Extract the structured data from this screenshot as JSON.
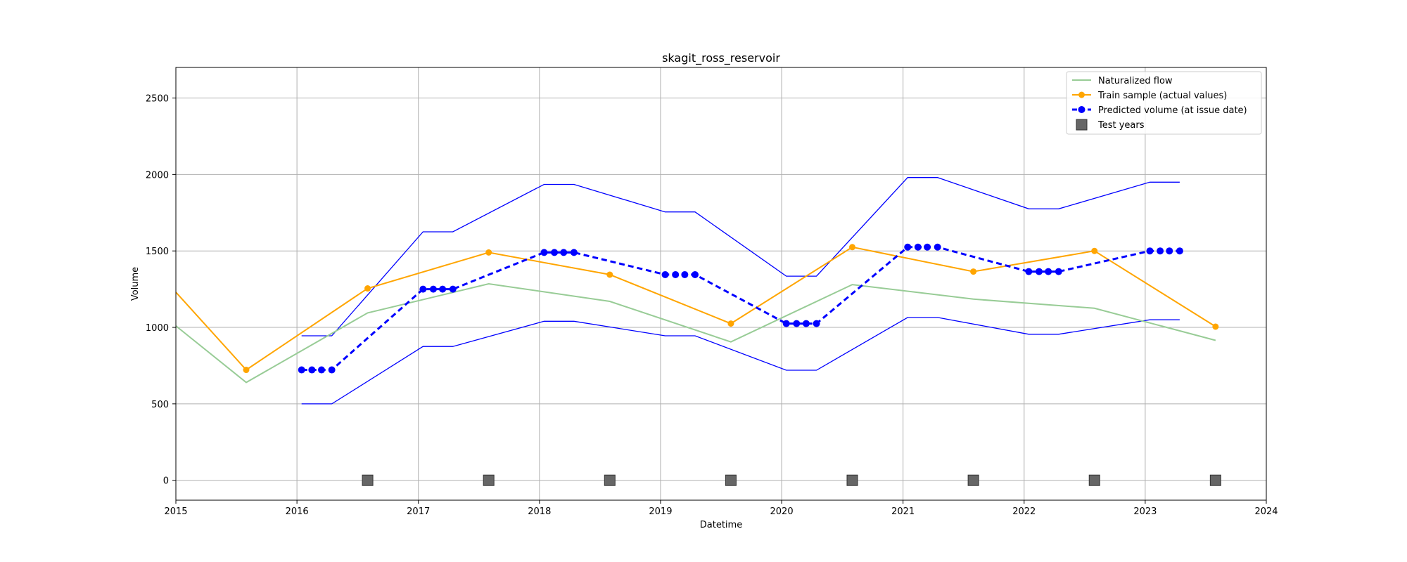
{
  "chart_data": {
    "type": "line",
    "title": "skagit_ross_reservoir",
    "xlabel": "Datetime",
    "ylabel": "Volume",
    "xlim": [
      "2015-01-01",
      "2024-01-01"
    ],
    "ylim": [
      -130,
      2700
    ],
    "xticks": [
      "2015",
      "2016",
      "2017",
      "2018",
      "2019",
      "2020",
      "2021",
      "2022",
      "2023",
      "2024"
    ],
    "yticks": [
      0,
      500,
      1000,
      1500,
      2000,
      2500
    ],
    "grid": true,
    "legend_position": "upper right",
    "colors": {
      "naturalized": "#98cc96",
      "train": "#ffa500",
      "predicted": "#0000ff",
      "bounds": "#0000ff",
      "test": "#666666"
    },
    "naturalized_flow": {
      "name": "Naturalized flow",
      "points": [
        [
          "2015-01-01",
          1010
        ],
        [
          "2015-08-01",
          640
        ],
        [
          "2016-08-01",
          1095
        ],
        [
          "2017-08-01",
          1285
        ],
        [
          "2018-08-01",
          1170
        ],
        [
          "2019-08-01",
          905
        ],
        [
          "2020-08-01",
          1280
        ],
        [
          "2021-08-01",
          1185
        ],
        [
          "2022-08-01",
          1125
        ],
        [
          "2023-08-01",
          915
        ]
      ]
    },
    "train_sample": {
      "name": "Train sample (actual values)",
      "points": [
        [
          "2015-01-01",
          1230
        ],
        [
          "2015-08-01",
          722
        ],
        [
          "2016-08-01",
          1255
        ],
        [
          "2017-08-01",
          1490
        ],
        [
          "2018-08-01",
          1345
        ],
        [
          "2019-08-01",
          1025
        ],
        [
          "2020-08-01",
          1525
        ],
        [
          "2021-08-01",
          1365
        ],
        [
          "2022-08-01",
          1500
        ],
        [
          "2023-08-01",
          1005
        ]
      ]
    },
    "predicted": {
      "name": "Predicted volume (at issue date)",
      "points": [
        [
          "2016-01-15",
          722
        ],
        [
          "2016-02-15",
          722
        ],
        [
          "2016-03-15",
          722
        ],
        [
          "2016-04-15",
          722
        ],
        [
          "2017-01-15",
          1250
        ],
        [
          "2017-02-15",
          1250
        ],
        [
          "2017-03-15",
          1250
        ],
        [
          "2017-04-15",
          1250
        ],
        [
          "2018-01-15",
          1490
        ],
        [
          "2018-02-15",
          1490
        ],
        [
          "2018-03-15",
          1490
        ],
        [
          "2018-04-15",
          1490
        ],
        [
          "2019-01-15",
          1345
        ],
        [
          "2019-02-15",
          1345
        ],
        [
          "2019-03-15",
          1345
        ],
        [
          "2019-04-15",
          1345
        ],
        [
          "2020-01-15",
          1025
        ],
        [
          "2020-02-15",
          1025
        ],
        [
          "2020-03-15",
          1025
        ],
        [
          "2020-04-15",
          1025
        ],
        [
          "2021-01-15",
          1525
        ],
        [
          "2021-02-15",
          1525
        ],
        [
          "2021-03-15",
          1525
        ],
        [
          "2021-04-15",
          1525
        ],
        [
          "2022-01-15",
          1365
        ],
        [
          "2022-02-15",
          1365
        ],
        [
          "2022-03-15",
          1365
        ],
        [
          "2022-04-15",
          1365
        ],
        [
          "2023-01-15",
          1500
        ],
        [
          "2023-02-15",
          1500
        ],
        [
          "2023-03-15",
          1500
        ],
        [
          "2023-04-15",
          1500
        ]
      ]
    },
    "upper_bound": {
      "points": [
        [
          "2016-01-15",
          945
        ],
        [
          "2016-04-15",
          945
        ],
        [
          "2017-01-15",
          1625
        ],
        [
          "2017-04-15",
          1625
        ],
        [
          "2018-01-15",
          1935
        ],
        [
          "2018-04-15",
          1935
        ],
        [
          "2019-01-15",
          1755
        ],
        [
          "2019-04-15",
          1755
        ],
        [
          "2020-01-15",
          1335
        ],
        [
          "2020-04-15",
          1335
        ],
        [
          "2021-01-15",
          1980
        ],
        [
          "2021-04-15",
          1980
        ],
        [
          "2022-01-15",
          1775
        ],
        [
          "2022-04-15",
          1775
        ],
        [
          "2023-01-15",
          1950
        ],
        [
          "2023-04-15",
          1950
        ]
      ]
    },
    "lower_bound": {
      "points": [
        [
          "2016-01-15",
          500
        ],
        [
          "2016-04-15",
          500
        ],
        [
          "2017-01-15",
          875
        ],
        [
          "2017-04-15",
          875
        ],
        [
          "2018-01-15",
          1040
        ],
        [
          "2018-04-15",
          1040
        ],
        [
          "2019-01-15",
          945
        ],
        [
          "2019-04-15",
          945
        ],
        [
          "2020-01-15",
          720
        ],
        [
          "2020-04-15",
          720
        ],
        [
          "2021-01-15",
          1065
        ],
        [
          "2021-04-15",
          1065
        ],
        [
          "2022-01-15",
          955
        ],
        [
          "2022-04-15",
          955
        ],
        [
          "2023-01-15",
          1050
        ],
        [
          "2023-04-15",
          1050
        ]
      ]
    },
    "test_years": {
      "name": "Test years",
      "points": [
        [
          "2016-08-01",
          0
        ],
        [
          "2017-08-01",
          0
        ],
        [
          "2018-08-01",
          0
        ],
        [
          "2019-08-01",
          0
        ],
        [
          "2020-08-01",
          0
        ],
        [
          "2021-08-01",
          0
        ],
        [
          "2022-08-01",
          0
        ],
        [
          "2023-08-01",
          0
        ]
      ]
    }
  }
}
